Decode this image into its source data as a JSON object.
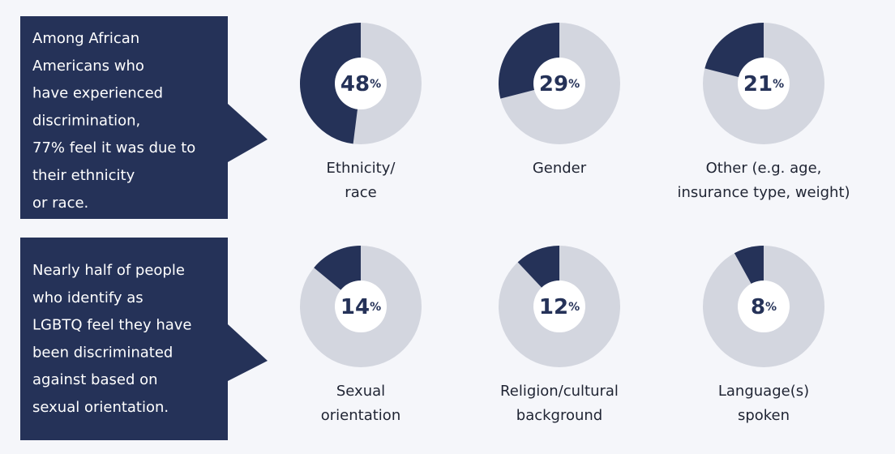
{
  "callouts": [
    {
      "lines": [
        "Among African",
        "Americans who",
        "have experienced",
        "discrimination,",
        "77% feel it was due to",
        "their ethnicity",
        "or race."
      ]
    },
    {
      "lines": [
        "Nearly half of people",
        "who identify as",
        "LGBTQ feel they have",
        "been discriminated",
        "against based on",
        "sexual orientation."
      ]
    }
  ],
  "chart_data": [
    {
      "type": "donut",
      "caption": [
        "Ethnicity/",
        "race"
      ],
      "values": [
        48
      ],
      "value_labels": [
        "48%"
      ],
      "color": "#253258",
      "track_color": "#d3d6df"
    },
    {
      "type": "donut",
      "caption": [
        "Gender"
      ],
      "values": [
        29
      ],
      "value_labels": [
        "29%"
      ],
      "color": "#253258",
      "track_color": "#d3d6df"
    },
    {
      "type": "donut",
      "caption": [
        "Other (e.g. age,",
        "insurance type, weight)"
      ],
      "values": [
        21
      ],
      "value_labels": [
        "21%"
      ],
      "color": "#253258",
      "track_color": "#d3d6df"
    },
    {
      "type": "donut",
      "caption": [
        "Sexual",
        "orientation"
      ],
      "values": [
        14
      ],
      "value_labels": [
        "14%"
      ],
      "color": "#253258",
      "track_color": "#d3d6df"
    },
    {
      "type": "donut",
      "caption": [
        "Religion/cultural",
        "background"
      ],
      "values": [
        12
      ],
      "value_labels": [
        "12%"
      ],
      "color": "#253258",
      "track_color": "#d3d6df"
    },
    {
      "type": "donut",
      "caption": [
        "Language(s)",
        "spoken"
      ],
      "values": [
        8
      ],
      "value_labels": [
        "8%"
      ],
      "color": "#253258",
      "track_color": "#d3d6df"
    }
  ]
}
